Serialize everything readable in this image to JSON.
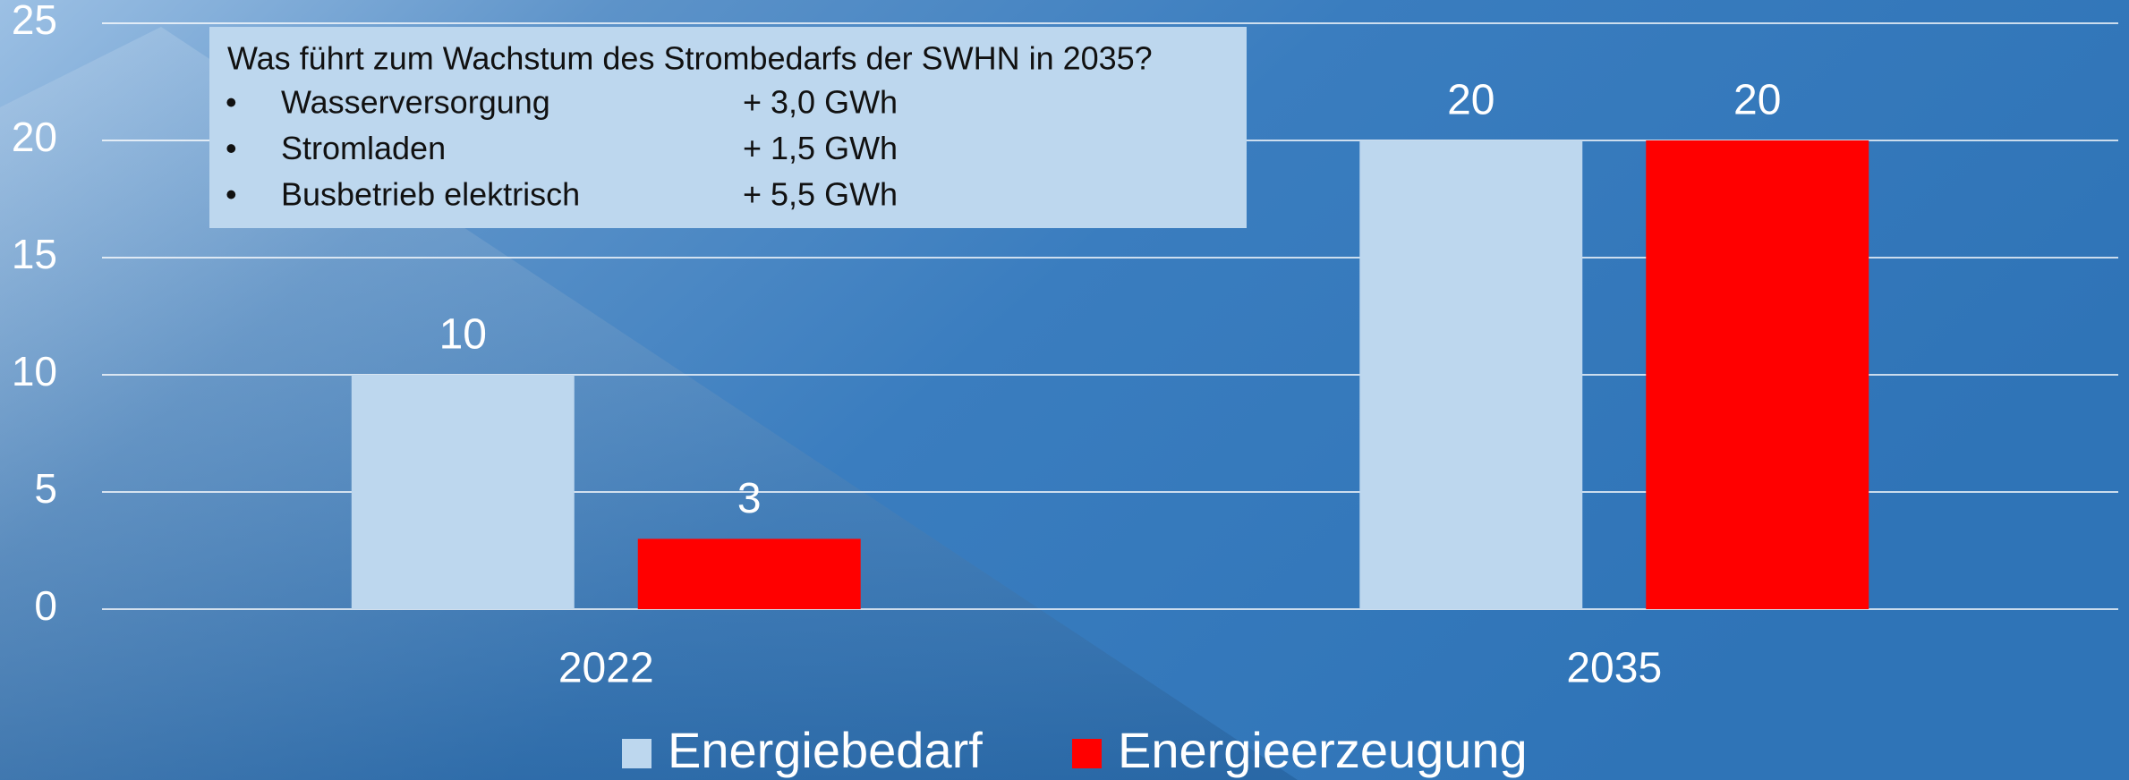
{
  "chart_data": {
    "type": "bar",
    "categories": [
      "2022",
      "2035"
    ],
    "series": [
      {
        "name": "Energiebedarf",
        "color": "#bdd7ee",
        "values": [
          10,
          20
        ]
      },
      {
        "name": "Energieerzeugung",
        "color": "#ff0000",
        "values": [
          3,
          20
        ]
      }
    ],
    "ylim": [
      0,
      25
    ],
    "yticks": [
      0,
      5,
      10,
      15,
      20,
      25
    ],
    "grid": true,
    "legend": "bottom",
    "annotation": {
      "title": "Was führt zum Wachstum des Strombedarfs der SWHN in 2035?",
      "items": [
        {
          "bullet": "•",
          "label": "Wasserversorgung",
          "value": "+ 3,0 GWh"
        },
        {
          "bullet": "•",
          "label": "Stromladen",
          "value": "+ 1,5 GWh"
        },
        {
          "bullet": "•",
          "label": "Busbetrieb elektrisch",
          "value": "+ 5,5 GWh"
        }
      ]
    }
  }
}
